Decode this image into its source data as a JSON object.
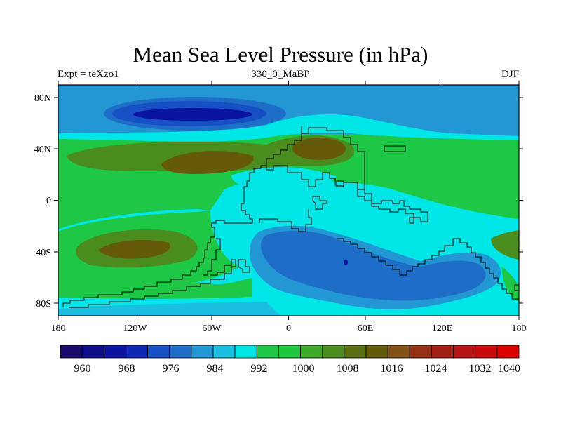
{
  "map": {
    "title": "Mean Sea Level Pressure (in hPa)",
    "subtitle_left": "Expt = teXzo1",
    "subtitle_center": "330_9_MaBP",
    "subtitle_right": "DJF",
    "x_ticks": [
      "180",
      "120W",
      "60W",
      "0",
      "60E",
      "120E",
      "180"
    ],
    "y_ticks": [
      "80N",
      "40N",
      "0",
      "40S",
      "80S"
    ],
    "colorbar": {
      "labels": [
        "960",
        "968",
        "976",
        "984",
        "992",
        "1000",
        "1008",
        "1016",
        "1024",
        "1032",
        "1040"
      ],
      "colors": [
        "#1a0a6e",
        "#0e0e8a",
        "#0a14a0",
        "#0e26b4",
        "#1650c4",
        "#1e6ec8",
        "#2396d4",
        "#19c0e0",
        "#00e6e6",
        "#1ec846",
        "#1ec83c",
        "#3caa28",
        "#4b8c1e",
        "#5a6e14",
        "#645a0a",
        "#825014",
        "#963214",
        "#a01e14",
        "#b41414",
        "#c80a0a",
        "#dc0000"
      ]
    }
  }
}
